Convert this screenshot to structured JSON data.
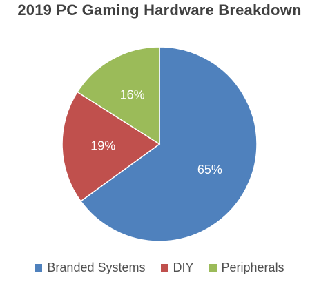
{
  "chart_data": {
    "type": "pie",
    "title": "2019 PC Gaming Hardware Breakdown",
    "categories": [
      "Branded Systems",
      "DIY",
      "Peripherals"
    ],
    "values": [
      65,
      19,
      16
    ],
    "value_labels": [
      "65%",
      "19%",
      "16%"
    ],
    "colors": [
      "#4f81bd",
      "#c0504d",
      "#9bbb59"
    ],
    "legend_position": "bottom",
    "start_angle_deg": 0,
    "direction": "clockwise"
  }
}
